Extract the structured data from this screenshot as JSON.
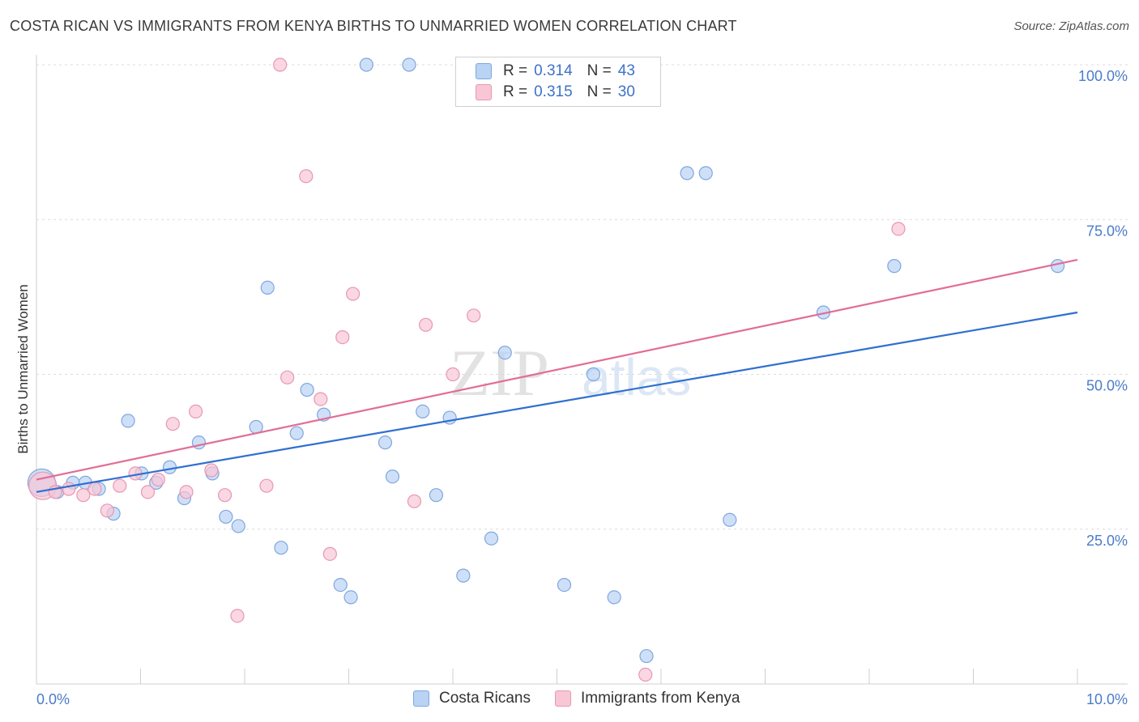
{
  "header": {
    "title": "COSTA RICAN VS IMMIGRANTS FROM KENYA BIRTHS TO UNMARRIED WOMEN CORRELATION CHART",
    "source": "Source: ZipAtlas.com"
  },
  "legend": {
    "series1": {
      "r_label": "R =",
      "r_value": "0.314",
      "n_label": "N =",
      "n_value": "43"
    },
    "series2": {
      "r_label": "R =",
      "r_value": "0.315",
      "n_label": "N =",
      "n_value": "30"
    }
  },
  "bottom_legend": {
    "series1": "Costa Ricans",
    "series2": "Immigrants from Kenya"
  },
  "watermark": {
    "part1": "ZIP",
    "part2": "atlas"
  },
  "colors": {
    "blue_fill": "#b9d3f5",
    "blue_stroke": "#7fa6df",
    "blue_line": "#2f6fd0",
    "pink_fill": "#f8c6d5",
    "pink_stroke": "#e897b1",
    "pink_line": "#e26d95"
  },
  "chart_data": {
    "type": "scatter",
    "title": "COSTA RICAN VS IMMIGRANTS FROM KENYA BIRTHS TO UNMARRIED WOMEN CORRELATION CHART",
    "xlabel": "",
    "ylabel": "Births to Unmarried Women",
    "xlim": [
      0,
      10
    ],
    "ylim": [
      0,
      102
    ],
    "x_tick_labels": [
      "0.0%",
      "10.0%"
    ],
    "y_ticks": [
      25,
      50,
      75,
      100
    ],
    "y_tick_labels": [
      "25.0%",
      "50.0%",
      "75.0%",
      "100.0%"
    ],
    "grid": true,
    "series": [
      {
        "name": "Costa Ricans",
        "r": 0.314,
        "n": 43,
        "trend": {
          "x": [
            0,
            10
          ],
          "y": [
            31.0,
            60.0
          ]
        },
        "points": [
          {
            "x": 0.05,
            "y": 32.5,
            "big": true
          },
          {
            "x": 0.2,
            "y": 31.0
          },
          {
            "x": 0.35,
            "y": 32.5
          },
          {
            "x": 0.47,
            "y": 32.5
          },
          {
            "x": 0.6,
            "y": 31.5
          },
          {
            "x": 0.74,
            "y": 27.5
          },
          {
            "x": 0.88,
            "y": 42.5
          },
          {
            "x": 1.01,
            "y": 34.0
          },
          {
            "x": 1.15,
            "y": 32.5
          },
          {
            "x": 1.28,
            "y": 35.0
          },
          {
            "x": 1.42,
            "y": 30.0
          },
          {
            "x": 1.56,
            "y": 39.0
          },
          {
            "x": 1.69,
            "y": 34.0
          },
          {
            "x": 1.82,
            "y": 27.0
          },
          {
            "x": 1.94,
            "y": 25.5
          },
          {
            "x": 2.11,
            "y": 41.5
          },
          {
            "x": 2.22,
            "y": 64.0
          },
          {
            "x": 2.35,
            "y": 22.0
          },
          {
            "x": 2.5,
            "y": 40.5
          },
          {
            "x": 2.6,
            "y": 47.5
          },
          {
            "x": 2.76,
            "y": 43.5
          },
          {
            "x": 2.92,
            "y": 16.0
          },
          {
            "x": 3.02,
            "y": 14.0
          },
          {
            "x": 3.17,
            "y": 100.0
          },
          {
            "x": 3.35,
            "y": 39.0
          },
          {
            "x": 3.42,
            "y": 33.5
          },
          {
            "x": 3.58,
            "y": 100.0
          },
          {
            "x": 3.71,
            "y": 44.0
          },
          {
            "x": 3.84,
            "y": 30.5
          },
          {
            "x": 3.97,
            "y": 43.0
          },
          {
            "x": 4.1,
            "y": 17.5
          },
          {
            "x": 4.37,
            "y": 23.5
          },
          {
            "x": 4.5,
            "y": 53.5
          },
          {
            "x": 5.07,
            "y": 16.0
          },
          {
            "x": 5.35,
            "y": 50.0
          },
          {
            "x": 5.55,
            "y": 14.0
          },
          {
            "x": 5.86,
            "y": 4.5
          },
          {
            "x": 6.25,
            "y": 82.5
          },
          {
            "x": 6.43,
            "y": 82.5
          },
          {
            "x": 6.66,
            "y": 26.5
          },
          {
            "x": 7.56,
            "y": 60.0
          },
          {
            "x": 8.24,
            "y": 67.5
          },
          {
            "x": 9.81,
            "y": 67.5
          }
        ]
      },
      {
        "name": "Immigrants from Kenya",
        "r": 0.315,
        "n": 30,
        "trend": {
          "x": [
            0,
            10
          ],
          "y": [
            33.0,
            68.5
          ]
        },
        "points": [
          {
            "x": 0.06,
            "y": 32.0,
            "big": true
          },
          {
            "x": 0.18,
            "y": 31.0
          },
          {
            "x": 0.31,
            "y": 31.5
          },
          {
            "x": 0.45,
            "y": 30.5
          },
          {
            "x": 0.56,
            "y": 31.5
          },
          {
            "x": 0.68,
            "y": 28.0
          },
          {
            "x": 0.8,
            "y": 32.0
          },
          {
            "x": 0.95,
            "y": 34.0
          },
          {
            "x": 1.07,
            "y": 31.0
          },
          {
            "x": 1.17,
            "y": 33.0
          },
          {
            "x": 1.31,
            "y": 42.0
          },
          {
            "x": 1.44,
            "y": 31.0
          },
          {
            "x": 1.53,
            "y": 44.0
          },
          {
            "x": 1.68,
            "y": 34.5
          },
          {
            "x": 1.81,
            "y": 30.5
          },
          {
            "x": 1.93,
            "y": 11.0
          },
          {
            "x": 2.21,
            "y": 32.0
          },
          {
            "x": 2.34,
            "y": 100.0
          },
          {
            "x": 2.41,
            "y": 49.5
          },
          {
            "x": 2.59,
            "y": 82.0
          },
          {
            "x": 2.73,
            "y": 46.0
          },
          {
            "x": 2.82,
            "y": 21.0
          },
          {
            "x": 2.94,
            "y": 56.0
          },
          {
            "x": 3.04,
            "y": 63.0
          },
          {
            "x": 3.63,
            "y": 29.5
          },
          {
            "x": 3.74,
            "y": 58.0
          },
          {
            "x": 4.0,
            "y": 50.0
          },
          {
            "x": 4.2,
            "y": 59.5
          },
          {
            "x": 5.85,
            "y": 1.5
          },
          {
            "x": 8.28,
            "y": 73.5
          }
        ]
      }
    ]
  }
}
